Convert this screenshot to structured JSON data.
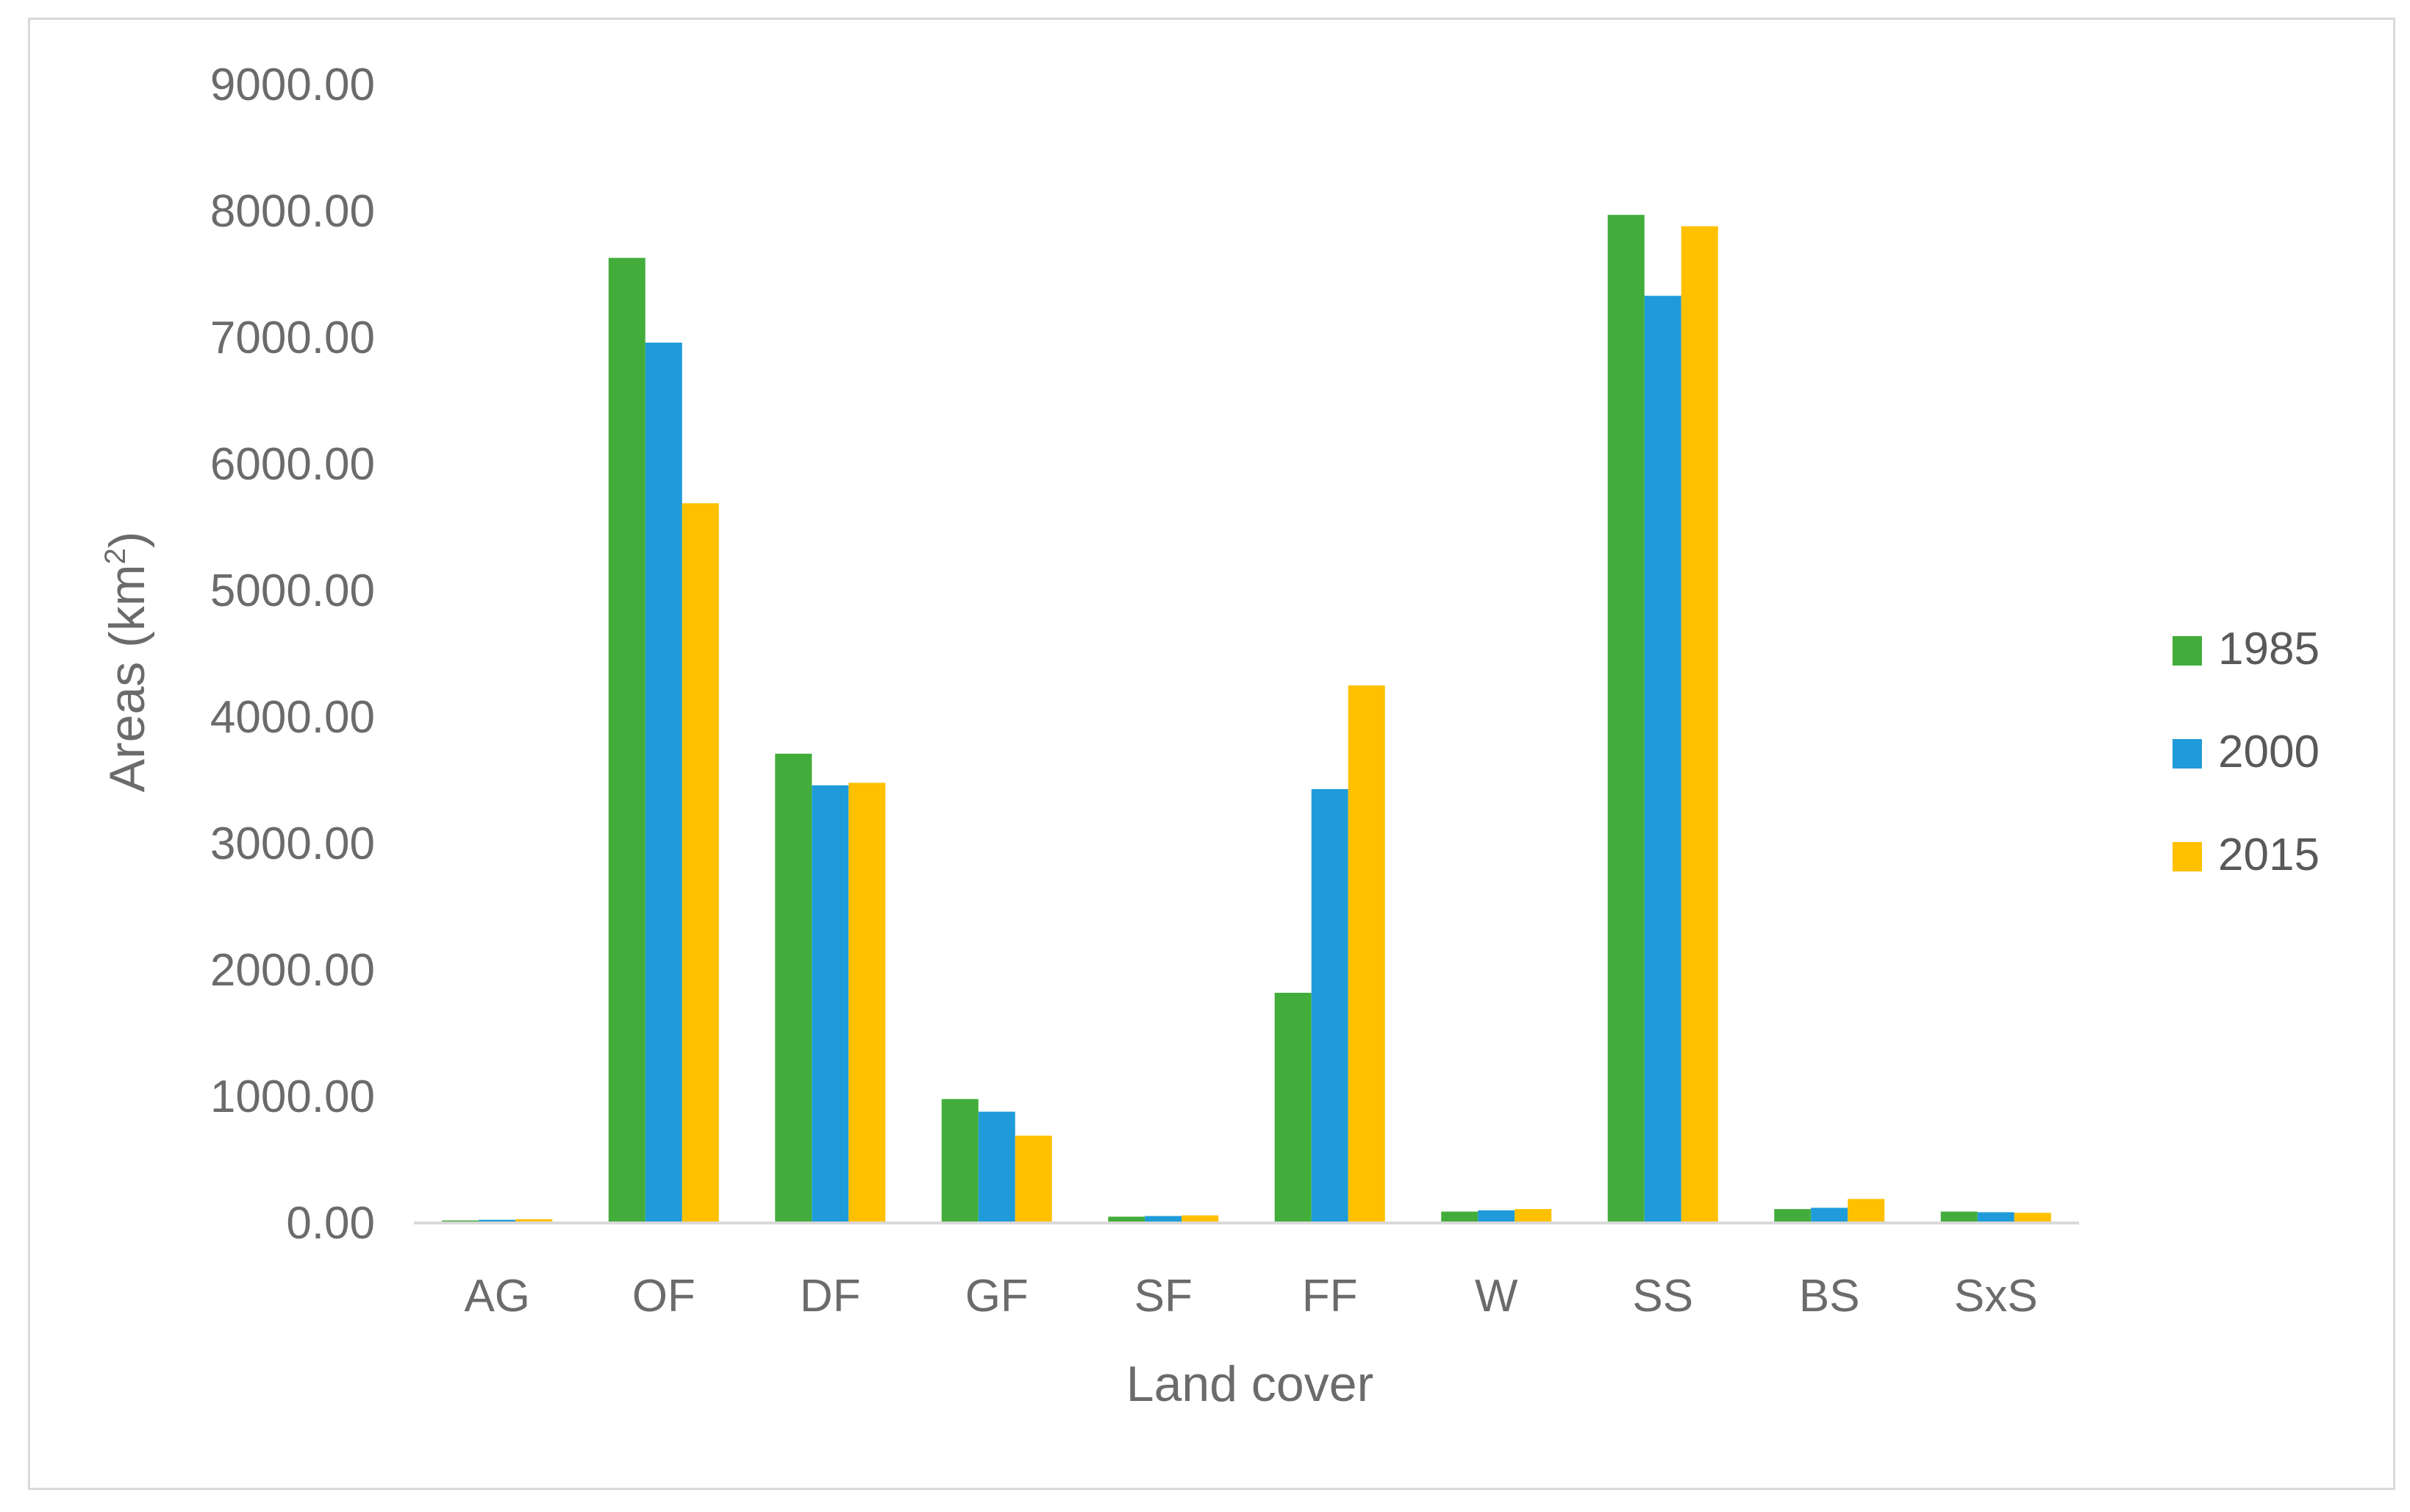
{
  "chart_data": {
    "type": "bar",
    "title": "",
    "xlabel": "Land cover",
    "ylabel_main": "Areas (km",
    "ylabel_sup": "2",
    "ylabel_close": ")",
    "ylim": [
      0,
      9000
    ],
    "yticks": [
      "0.00",
      "1000.00",
      "2000.00",
      "3000.00",
      "4000.00",
      "5000.00",
      "6000.00",
      "7000.00",
      "8000.00",
      "9000.00"
    ],
    "ytick_values": [
      0,
      1000,
      2000,
      3000,
      4000,
      5000,
      6000,
      7000,
      8000,
      9000
    ],
    "categories": [
      "AG",
      "OF",
      "DF",
      "GF",
      "SF",
      "FF",
      "W",
      "SS",
      "BS",
      "SxS"
    ],
    "series": [
      {
        "name": "1985",
        "color": "#43ad3b",
        "values": [
          20,
          7630,
          3710,
          980,
          50,
          1820,
          90,
          7970,
          110,
          90
        ]
      },
      {
        "name": "2000",
        "color": "#1f9bd9",
        "values": [
          25,
          6960,
          3460,
          880,
          55,
          3430,
          100,
          7330,
          120,
          85
        ]
      },
      {
        "name": "2015",
        "color": "#ffc000",
        "values": [
          30,
          5690,
          3480,
          690,
          60,
          4250,
          110,
          7880,
          190,
          80
        ]
      }
    ],
    "grid": false,
    "legend_position": "right"
  }
}
